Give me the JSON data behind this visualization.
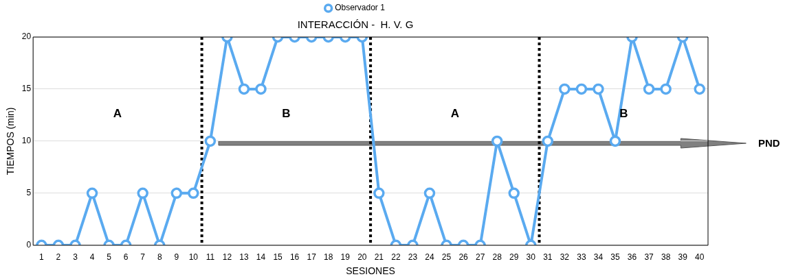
{
  "chart_data": {
    "type": "line",
    "title": "INTERACCIÓN -  H. V. G",
    "xlabel": "SESIONES",
    "ylabel": "TIEMPOS (min)",
    "x": [
      1,
      2,
      3,
      4,
      5,
      6,
      7,
      8,
      9,
      10,
      11,
      12,
      13,
      14,
      15,
      16,
      17,
      18,
      19,
      20,
      21,
      22,
      23,
      24,
      25,
      26,
      27,
      28,
      29,
      30,
      31,
      32,
      33,
      34,
      35,
      36,
      37,
      38,
      39,
      40
    ],
    "series": [
      {
        "name": "Observador 1",
        "color": "#5aaaf0",
        "values": [
          0,
          0,
          0,
          5,
          0,
          0,
          5,
          0,
          5,
          5,
          10,
          20,
          15,
          15,
          20,
          20,
          20,
          20,
          20,
          20,
          5,
          0,
          0,
          5,
          0,
          0,
          0,
          10,
          5,
          0,
          10,
          15,
          15,
          15,
          10,
          20,
          15,
          15,
          20,
          15
        ]
      }
    ],
    "xlim": [
      0.5,
      40.5
    ],
    "xticks": [
      1,
      2,
      3,
      4,
      5,
      6,
      7,
      8,
      9,
      10,
      11,
      12,
      13,
      14,
      15,
      16,
      17,
      18,
      19,
      20,
      21,
      22,
      23,
      24,
      25,
      26,
      27,
      28,
      29,
      30,
      31,
      32,
      33,
      34,
      35,
      36,
      37,
      38,
      39,
      40
    ],
    "ylim": [
      0,
      20
    ],
    "yticks": [
      0,
      5,
      10,
      15,
      20
    ],
    "grid": "y",
    "legend": "top",
    "marker": "circle",
    "line_style": "solid",
    "ref_lines": [
      {
        "axis": "x",
        "value": 10.5,
        "color": "#000000",
        "line_style": "dotted"
      },
      {
        "axis": "x",
        "value": 20.5,
        "color": "#000000",
        "line_style": "dotted"
      },
      {
        "axis": "x",
        "value": 30.5,
        "color": "#000000",
        "line_style": "dotted"
      }
    ],
    "annotations": [
      "A",
      "B",
      "A",
      "B",
      "PND"
    ]
  }
}
